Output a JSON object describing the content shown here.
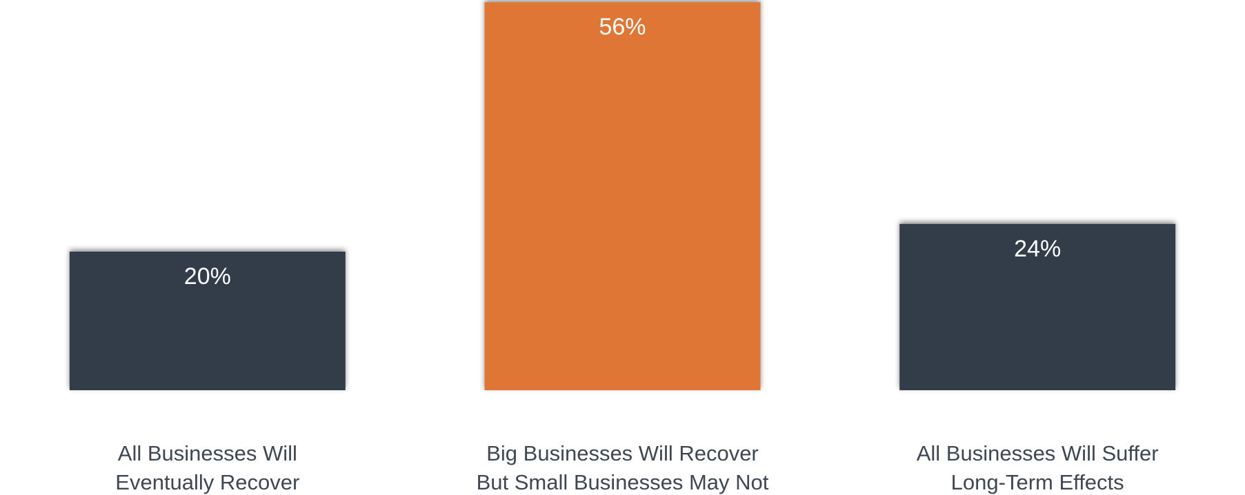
{
  "chart_data": {
    "type": "bar",
    "title": "",
    "xlabel": "",
    "ylabel": "",
    "ylim": [
      0,
      60
    ],
    "grid": true,
    "legend": "none",
    "categories": [
      [
        "All Businesses Will",
        "Eventually Recover"
      ],
      [
        "Big Businesses Will Recover",
        "But Small Businesses May Not"
      ],
      [
        "All Businesses Will Suffer",
        "Long-Term Effects"
      ]
    ],
    "values": [
      20,
      56,
      24
    ],
    "value_labels": [
      "20%",
      "56%",
      "24%"
    ],
    "colors": [
      "#333e4a",
      "#e07635",
      "#333e4a"
    ]
  }
}
